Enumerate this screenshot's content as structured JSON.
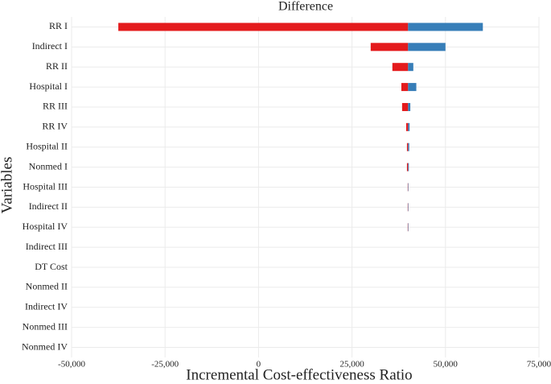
{
  "chart_data": {
    "type": "tornado",
    "title": "Difference",
    "x_label": "Incremental Cost-effectiveness Ratio",
    "y_label": "Variables",
    "categories": [
      "RR I",
      "Indirect I",
      "RR II",
      "Hospital I",
      "RR III",
      "RR IV",
      "Hospital II",
      "Nonmed I",
      "Hospital III",
      "Indirect II",
      "Hospital IV",
      "Indirect III",
      "DT Cost",
      "Nonmed II",
      "Indirect IV",
      "Nonmed III",
      "Nonmed IV"
    ],
    "base": 40000,
    "low_color": "#e41a1c",
    "high_color": "#377eb8",
    "low_values": [
      -37500,
      30000,
      35800,
      38200,
      38400,
      39500,
      39700,
      39700,
      39900,
      39900,
      39900,
      40000,
      40000,
      40000,
      40000,
      40000,
      40000
    ],
    "high_values": [
      60000,
      50000,
      41400,
      42200,
      40600,
      40400,
      40300,
      40200,
      40100,
      40100,
      40100,
      40000,
      40000,
      40000,
      40000,
      40000,
      40000
    ],
    "xlim": [
      -50000,
      75000
    ],
    "xticks": [
      {
        "value": -50000,
        "label": "-50,000"
      },
      {
        "value": -25000,
        "label": "-25,000"
      },
      0,
      {
        "value": 25000,
        "label": "25,000"
      },
      {
        "value": 50000,
        "label": "50,000"
      },
      {
        "value": 75000,
        "label": "75,000"
      }
    ],
    "grid": true
  }
}
